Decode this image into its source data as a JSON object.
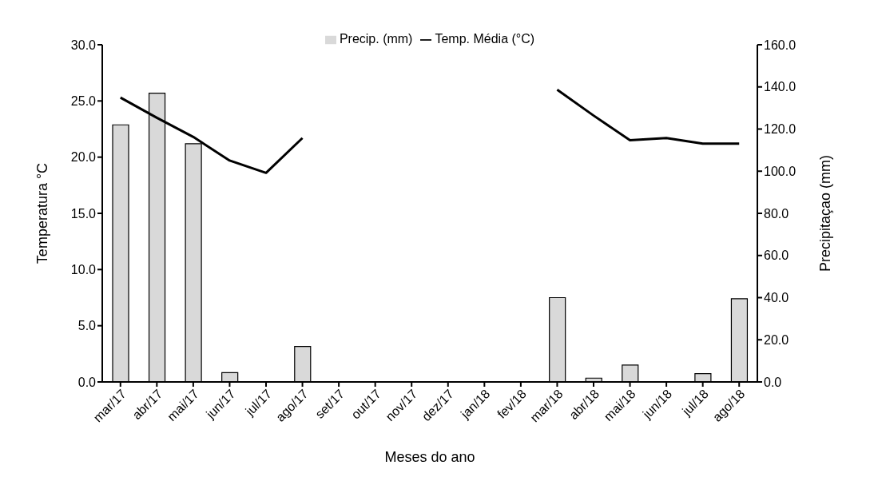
{
  "chart_data": {
    "type": "bar",
    "xlabel": "Meses do ano",
    "ylabel": "Temperatura  °C",
    "y2label": "Precipitaçao (mm)",
    "categories": [
      "mar/17",
      "abr/17",
      "mai/17",
      "jun/17",
      "jul/17",
      "ago/17",
      "set/17",
      "out/17",
      "nov/17",
      "dez/17",
      "jan/18",
      "fev/18",
      "mar/18",
      "abr/18",
      "mai/18",
      "jun/18",
      "jul/18",
      "ago/18"
    ],
    "series": [
      {
        "name": "Precip. (mm)",
        "axis": "y2",
        "color": "#d9d9d9",
        "values": [
          122,
          137,
          113,
          4.4,
          0,
          16.8,
          0,
          0,
          0,
          0,
          0,
          0,
          40,
          1.8,
          8,
          0,
          3.9,
          39.5
        ]
      },
      {
        "name": "Temp. Média (°C)",
        "type": "line",
        "color": "#000000",
        "values": [
          25.3,
          23.5,
          21.8,
          19.7,
          18.6,
          21.7,
          null,
          null,
          null,
          null,
          null,
          null,
          26.0,
          23.7,
          21.5,
          21.7,
          21.2,
          21.2
        ]
      }
    ],
    "ylim": [
      0,
      30
    ],
    "yticks": [
      {
        "value": 0,
        "label": "0.0"
      },
      {
        "value": 5,
        "label": "5.0"
      },
      {
        "value": 10,
        "label": "10.0"
      },
      {
        "value": 15,
        "label": "15.0"
      },
      {
        "value": 20,
        "label": "20.0"
      },
      {
        "value": 25,
        "label": "25.0"
      },
      {
        "value": 30,
        "label": "30.0"
      }
    ],
    "y2lim": [
      0,
      160
    ],
    "y2ticks": [
      {
        "value": 0,
        "label": "0.0"
      },
      {
        "value": 20,
        "label": "20.0"
      },
      {
        "value": 40,
        "label": "40.0"
      },
      {
        "value": 60,
        "label": "60.0"
      },
      {
        "value": 80,
        "label": "80.0"
      },
      {
        "value": 100,
        "label": "100.0"
      },
      {
        "value": 120,
        "label": "120.0"
      },
      {
        "value": 140,
        "label": "140.0"
      },
      {
        "value": 160,
        "label": "160.0"
      }
    ],
    "legend": "top",
    "grid": false,
    "marker": "none",
    "line_style": "solid"
  }
}
